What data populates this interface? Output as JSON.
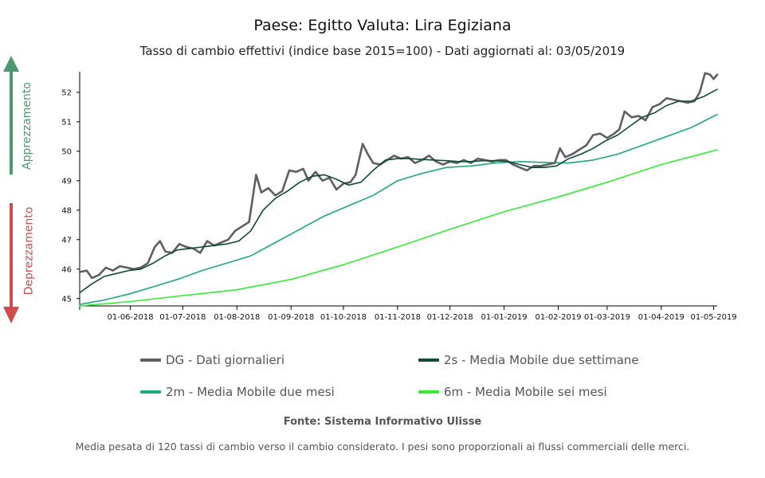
{
  "chart_data": {
    "type": "line",
    "title": "Paese: Egitto Valuta: Lira Egiziana",
    "subtitle": "Tasso di cambio effettivi (indice base 2015=100) - Dati aggiornati al: 03/05/2019",
    "xlabel": "",
    "ylabel": "",
    "x_range": [
      "2018-05-03",
      "2019-05-03"
    ],
    "ylim": [
      44.75,
      52.7
    ],
    "y_ticks": [
      45,
      46,
      47,
      48,
      49,
      50,
      51,
      52
    ],
    "x_ticks": [
      {
        "date": "2018-06-01",
        "label": "01-06-2018"
      },
      {
        "date": "2018-07-01",
        "label": "01-07-2018"
      },
      {
        "date": "2018-08-01",
        "label": "01-08-2018"
      },
      {
        "date": "2018-09-01",
        "label": "01-09-2018"
      },
      {
        "date": "2018-10-01",
        "label": "01-10-2018"
      },
      {
        "date": "2018-11-01",
        "label": "01-11-2018"
      },
      {
        "date": "2018-12-01",
        "label": "01-12-2018"
      },
      {
        "date": "2019-01-01",
        "label": "01-01-2019"
      },
      {
        "date": "2019-02-01",
        "label": "01-02-2019"
      },
      {
        "date": "2019-03-01",
        "label": "01-03-2019"
      },
      {
        "date": "2019-04-01",
        "label": "01-04-2019"
      },
      {
        "date": "2019-05-01",
        "label": "01-05-2019"
      }
    ],
    "grid": false,
    "legend_position": "bottom",
    "series": [
      {
        "name": "DG - Dati giornalieri",
        "color": "#5f5f5f",
        "width": 2.6,
        "points": [
          [
            "2018-05-03",
            45.9
          ],
          [
            "2018-05-07",
            45.95
          ],
          [
            "2018-05-10",
            45.7
          ],
          [
            "2018-05-14",
            45.8
          ],
          [
            "2018-05-18",
            46.05
          ],
          [
            "2018-05-22",
            45.95
          ],
          [
            "2018-05-26",
            46.1
          ],
          [
            "2018-05-30",
            46.05
          ],
          [
            "2018-06-03",
            46.0
          ],
          [
            "2018-06-07",
            46.05
          ],
          [
            "2018-06-11",
            46.2
          ],
          [
            "2018-06-15",
            46.75
          ],
          [
            "2018-06-18",
            46.95
          ],
          [
            "2018-06-21",
            46.6
          ],
          [
            "2018-06-25",
            46.55
          ],
          [
            "2018-06-29",
            46.85
          ],
          [
            "2018-07-03",
            46.75
          ],
          [
            "2018-07-07",
            46.7
          ],
          [
            "2018-07-11",
            46.55
          ],
          [
            "2018-07-15",
            46.95
          ],
          [
            "2018-07-19",
            46.8
          ],
          [
            "2018-07-23",
            46.9
          ],
          [
            "2018-07-27",
            47.0
          ],
          [
            "2018-07-31",
            47.3
          ],
          [
            "2018-08-04",
            47.45
          ],
          [
            "2018-08-08",
            47.6
          ],
          [
            "2018-08-12",
            49.2
          ],
          [
            "2018-08-15",
            48.6
          ],
          [
            "2018-08-19",
            48.75
          ],
          [
            "2018-08-23",
            48.5
          ],
          [
            "2018-08-27",
            48.65
          ],
          [
            "2018-08-31",
            49.35
          ],
          [
            "2018-09-04",
            49.3
          ],
          [
            "2018-09-08",
            49.4
          ],
          [
            "2018-09-11",
            49.0
          ],
          [
            "2018-09-15",
            49.3
          ],
          [
            "2018-09-19",
            49.0
          ],
          [
            "2018-09-23",
            49.1
          ],
          [
            "2018-09-27",
            48.7
          ],
          [
            "2018-10-01",
            48.9
          ],
          [
            "2018-10-05",
            48.95
          ],
          [
            "2018-10-08",
            49.2
          ],
          [
            "2018-10-12",
            50.25
          ],
          [
            "2018-10-15",
            49.9
          ],
          [
            "2018-10-18",
            49.6
          ],
          [
            "2018-10-22",
            49.55
          ],
          [
            "2018-10-26",
            49.7
          ],
          [
            "2018-10-30",
            49.85
          ],
          [
            "2018-11-03",
            49.75
          ],
          [
            "2018-11-07",
            49.8
          ],
          [
            "2018-11-11",
            49.6
          ],
          [
            "2018-11-15",
            49.7
          ],
          [
            "2018-11-19",
            49.85
          ],
          [
            "2018-11-23",
            49.65
          ],
          [
            "2018-11-27",
            49.55
          ],
          [
            "2018-12-01",
            49.65
          ],
          [
            "2018-12-05",
            49.6
          ],
          [
            "2018-12-09",
            49.7
          ],
          [
            "2018-12-13",
            49.6
          ],
          [
            "2018-12-17",
            49.75
          ],
          [
            "2018-12-21",
            49.7
          ],
          [
            "2018-12-25",
            49.65
          ],
          [
            "2018-12-29",
            49.7
          ],
          [
            "2019-01-02",
            49.7
          ],
          [
            "2019-01-06",
            49.55
          ],
          [
            "2019-01-10",
            49.45
          ],
          [
            "2019-01-14",
            49.35
          ],
          [
            "2019-01-18",
            49.5
          ],
          [
            "2019-01-22",
            49.5
          ],
          [
            "2019-01-26",
            49.55
          ],
          [
            "2019-01-30",
            49.6
          ],
          [
            "2019-02-02",
            50.1
          ],
          [
            "2019-02-05",
            49.8
          ],
          [
            "2019-02-09",
            49.9
          ],
          [
            "2019-02-13",
            50.05
          ],
          [
            "2019-02-17",
            50.2
          ],
          [
            "2019-02-21",
            50.55
          ],
          [
            "2019-02-25",
            50.6
          ],
          [
            "2019-03-01",
            50.45
          ],
          [
            "2019-03-05",
            50.6
          ],
          [
            "2019-03-08",
            50.75
          ],
          [
            "2019-03-11",
            51.35
          ],
          [
            "2019-03-15",
            51.15
          ],
          [
            "2019-03-19",
            51.2
          ],
          [
            "2019-03-23",
            51.05
          ],
          [
            "2019-03-27",
            51.5
          ],
          [
            "2019-03-31",
            51.6
          ],
          [
            "2019-04-04",
            51.8
          ],
          [
            "2019-04-08",
            51.75
          ],
          [
            "2019-04-12",
            51.7
          ],
          [
            "2019-04-16",
            51.65
          ],
          [
            "2019-04-20",
            51.7
          ],
          [
            "2019-04-23",
            52.0
          ],
          [
            "2019-04-26",
            52.65
          ],
          [
            "2019-04-29",
            52.6
          ],
          [
            "2019-05-01",
            52.45
          ],
          [
            "2019-05-03",
            52.6
          ]
        ]
      },
      {
        "name": "2s - Media Mobile due settimane",
        "color": "#0f4a3a",
        "width": 1.6,
        "points": [
          [
            "2018-05-03",
            45.2
          ],
          [
            "2018-05-10",
            45.5
          ],
          [
            "2018-05-17",
            45.75
          ],
          [
            "2018-05-24",
            45.85
          ],
          [
            "2018-05-31",
            45.95
          ],
          [
            "2018-06-07",
            46.0
          ],
          [
            "2018-06-14",
            46.2
          ],
          [
            "2018-06-21",
            46.45
          ],
          [
            "2018-06-28",
            46.65
          ],
          [
            "2018-07-05",
            46.7
          ],
          [
            "2018-07-12",
            46.75
          ],
          [
            "2018-07-19",
            46.8
          ],
          [
            "2018-07-26",
            46.85
          ],
          [
            "2018-08-02",
            46.95
          ],
          [
            "2018-08-09",
            47.3
          ],
          [
            "2018-08-16",
            48.0
          ],
          [
            "2018-08-23",
            48.4
          ],
          [
            "2018-08-30",
            48.65
          ],
          [
            "2018-09-06",
            48.95
          ],
          [
            "2018-09-13",
            49.15
          ],
          [
            "2018-09-20",
            49.2
          ],
          [
            "2018-09-27",
            49.05
          ],
          [
            "2018-10-04",
            48.85
          ],
          [
            "2018-10-11",
            48.95
          ],
          [
            "2018-10-18",
            49.35
          ],
          [
            "2018-10-25",
            49.7
          ],
          [
            "2018-11-01",
            49.75
          ],
          [
            "2018-11-08",
            49.75
          ],
          [
            "2018-11-15",
            49.72
          ],
          [
            "2018-11-22",
            49.7
          ],
          [
            "2018-11-29",
            49.68
          ],
          [
            "2018-12-06",
            49.65
          ],
          [
            "2018-12-13",
            49.65
          ],
          [
            "2018-12-20",
            49.68
          ],
          [
            "2018-12-27",
            49.68
          ],
          [
            "2019-01-03",
            49.65
          ],
          [
            "2019-01-10",
            49.55
          ],
          [
            "2019-01-17",
            49.45
          ],
          [
            "2019-01-24",
            49.45
          ],
          [
            "2019-01-31",
            49.5
          ],
          [
            "2019-02-07",
            49.75
          ],
          [
            "2019-02-14",
            49.9
          ],
          [
            "2019-02-21",
            50.1
          ],
          [
            "2019-02-28",
            50.35
          ],
          [
            "2019-03-07",
            50.55
          ],
          [
            "2019-03-14",
            50.85
          ],
          [
            "2019-03-21",
            51.15
          ],
          [
            "2019-03-28",
            51.3
          ],
          [
            "2019-04-04",
            51.55
          ],
          [
            "2019-04-11",
            51.7
          ],
          [
            "2019-04-18",
            51.7
          ],
          [
            "2019-04-25",
            51.85
          ],
          [
            "2019-05-03",
            52.1
          ]
        ]
      },
      {
        "name": "2m - Media Mobile due mesi",
        "color": "#1aaa7c",
        "width": 1.6,
        "points": [
          [
            "2018-05-03",
            44.8
          ],
          [
            "2018-05-17",
            44.95
          ],
          [
            "2018-05-31",
            45.15
          ],
          [
            "2018-06-14",
            45.4
          ],
          [
            "2018-06-28",
            45.65
          ],
          [
            "2018-07-12",
            45.95
          ],
          [
            "2018-07-26",
            46.2
          ],
          [
            "2018-08-09",
            46.45
          ],
          [
            "2018-08-23",
            46.9
          ],
          [
            "2018-09-06",
            47.35
          ],
          [
            "2018-09-20",
            47.8
          ],
          [
            "2018-10-04",
            48.15
          ],
          [
            "2018-10-18",
            48.5
          ],
          [
            "2018-11-01",
            49.0
          ],
          [
            "2018-11-15",
            49.25
          ],
          [
            "2018-11-29",
            49.45
          ],
          [
            "2018-12-13",
            49.5
          ],
          [
            "2018-12-27",
            49.6
          ],
          [
            "2019-01-10",
            49.65
          ],
          [
            "2019-01-24",
            49.62
          ],
          [
            "2019-02-07",
            49.6
          ],
          [
            "2019-02-21",
            49.7
          ],
          [
            "2019-03-07",
            49.9
          ],
          [
            "2019-03-21",
            50.2
          ],
          [
            "2019-04-04",
            50.5
          ],
          [
            "2019-04-18",
            50.8
          ],
          [
            "2019-05-03",
            51.25
          ]
        ]
      },
      {
        "name": "6m - Media Mobile sei mesi",
        "color": "#33ee33",
        "width": 1.6,
        "points": [
          [
            "2018-05-03",
            44.75
          ],
          [
            "2018-06-01",
            44.9
          ],
          [
            "2018-07-01",
            45.1
          ],
          [
            "2018-08-01",
            45.3
          ],
          [
            "2018-09-01",
            45.65
          ],
          [
            "2018-10-01",
            46.15
          ],
          [
            "2018-11-01",
            46.75
          ],
          [
            "2018-12-01",
            47.35
          ],
          [
            "2019-01-01",
            47.95
          ],
          [
            "2019-02-01",
            48.45
          ],
          [
            "2019-03-01",
            48.95
          ],
          [
            "2019-04-01",
            49.55
          ],
          [
            "2019-05-03",
            50.05
          ]
        ]
      }
    ]
  },
  "side_labels": {
    "up": "Apprezzamento",
    "down": "Deprezzamento",
    "up_color": "#4a9a6e",
    "down_color": "#d24a4a"
  },
  "legend": [
    {
      "label": "DG - Dati giornalieri",
      "color": "#5f5f5f"
    },
    {
      "label": "2s - Media Mobile due settimane",
      "color": "#0f4a3a"
    },
    {
      "label": "2m - Media Mobile due mesi",
      "color": "#1aaa7c"
    },
    {
      "label": "6m - Media Mobile sei mesi",
      "color": "#33ee33"
    }
  ],
  "source": "Fonte: Sistema Informativo Ulisse",
  "note": "Media pesata di 120 tassi di cambio verso il cambio considerato. I pesi sono proporzionali ai flussi commerciali delle merci."
}
